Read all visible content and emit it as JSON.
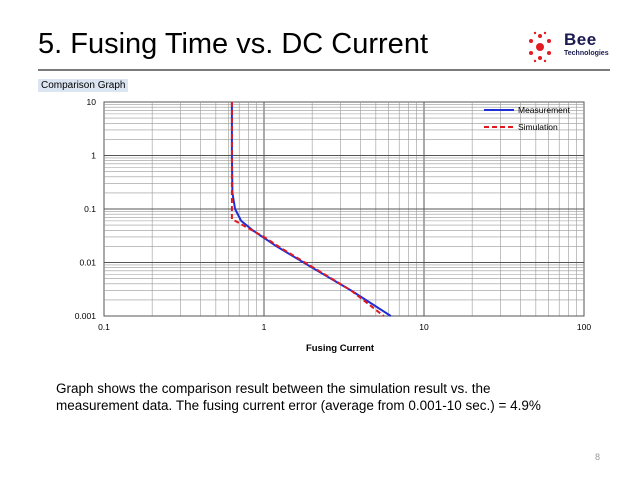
{
  "slide": {
    "title": "5. Fusing Time vs. DC Current",
    "graph_label": "Comparison Graph",
    "caption_line1": "Graph shows the comparison result between the simulation result vs. the",
    "caption_line2": "measurement data. The fusing current error (average from 0.001-10 sec.) = 4.9%",
    "page_number": "8"
  },
  "logo": {
    "name": "Bee",
    "sub": "Technologies",
    "color_red": "#e31b23",
    "color_navy": "#1a1a4e"
  },
  "chart_data": {
    "type": "line",
    "title": "",
    "xlabel": "Fusing Current",
    "ylabel": "",
    "xscale": "log",
    "yscale": "log",
    "xlim": [
      0.1,
      100
    ],
    "ylim": [
      0.001,
      10
    ],
    "x_ticks": [
      "0.1",
      "1",
      "10",
      "100"
    ],
    "y_ticks": [
      "0.001",
      "0.01",
      "0.1",
      "1",
      "10"
    ],
    "grid": true,
    "legend_position": "top-right",
    "series": [
      {
        "name": "Measurement",
        "color": "#1f2fd6",
        "style": "solid",
        "points": [
          [
            0.63,
            10
          ],
          [
            0.63,
            1
          ],
          [
            0.635,
            0.2
          ],
          [
            0.66,
            0.1
          ],
          [
            0.72,
            0.06
          ],
          [
            0.85,
            0.04
          ],
          [
            1.2,
            0.02
          ],
          [
            2.0,
            0.008
          ],
          [
            3.5,
            0.003
          ],
          [
            6.2,
            0.001
          ]
        ]
      },
      {
        "name": "Simulation",
        "color": "#e0191f",
        "style": "dashed",
        "points": [
          [
            0.63,
            10
          ],
          [
            0.63,
            1
          ],
          [
            0.63,
            0.065
          ],
          [
            1.0,
            0.03
          ],
          [
            1.3,
            0.018
          ],
          [
            2.2,
            0.007
          ],
          [
            3.5,
            0.003
          ],
          [
            5.6,
            0.001
          ]
        ]
      }
    ]
  }
}
